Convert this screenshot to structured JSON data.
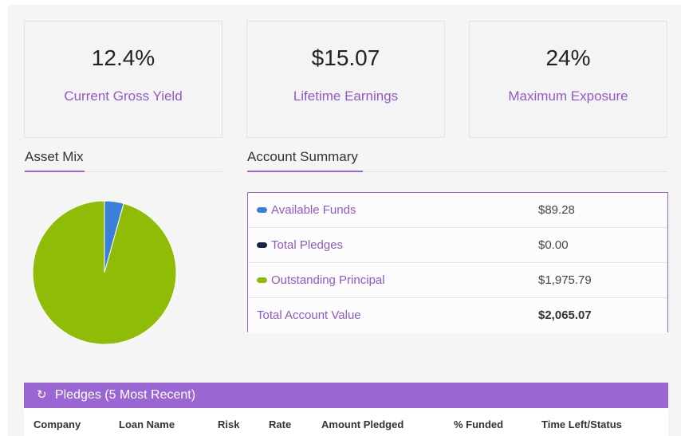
{
  "stats": [
    {
      "value": "12.4%",
      "label": "Current Gross Yield"
    },
    {
      "value": "$15.07",
      "label": "Lifetime Earnings"
    },
    {
      "value": "24%",
      "label": "Maximum Exposure"
    }
  ],
  "asset_mix": {
    "title": "Asset Mix",
    "slices": [
      {
        "name": "Available Funds",
        "value": 89.28,
        "color": "#3a7fd8"
      },
      {
        "name": "Total Pledges",
        "value": 0.0,
        "color": "#1a2540"
      },
      {
        "name": "Outstanding Principal",
        "value": 1975.79,
        "color": "#8ebc07"
      }
    ]
  },
  "account_summary": {
    "title": "Account Summary",
    "rows": [
      {
        "label": "Available Funds",
        "value": "$89.28",
        "color": "#3a7fd8"
      },
      {
        "label": "Total Pledges",
        "value": "$0.00",
        "color": "#1a2540"
      },
      {
        "label": "Outstanding Principal",
        "value": "$1,975.79",
        "color": "#8ebc07"
      }
    ],
    "total": {
      "label": "Total Account Value",
      "value": "$2,065.07"
    }
  },
  "pledges": {
    "title": "Pledges (5 Most Recent)",
    "refresh_icon": "refresh-icon",
    "columns": [
      "Company",
      "Loan Name",
      "Risk",
      "Rate",
      "Amount Pledged",
      "% Funded",
      "Time Left/Status"
    ]
  },
  "colors": {
    "accent": "#9a66d3"
  }
}
